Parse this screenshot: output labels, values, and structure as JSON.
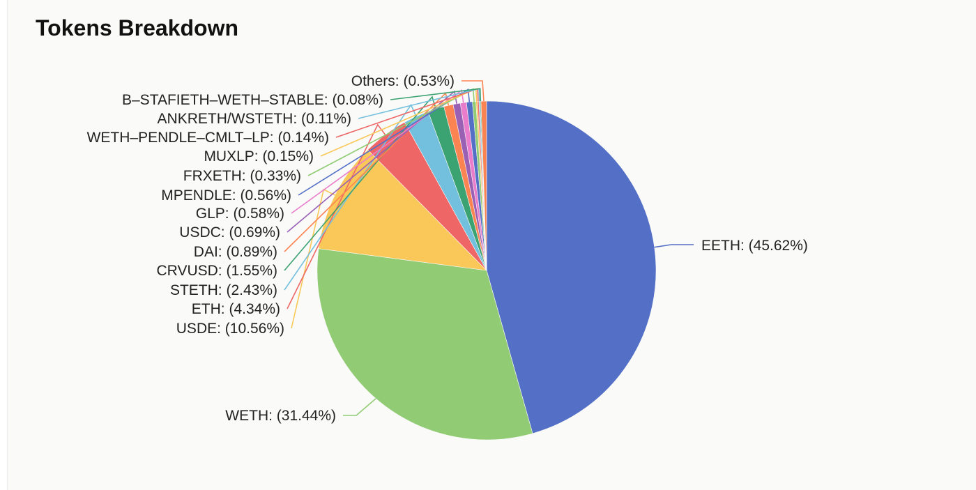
{
  "title": "Tokens Breakdown",
  "chart_data": {
    "type": "pie",
    "title": "Tokens Breakdown",
    "start_angle_deg": 90,
    "direction": "clockwise",
    "slices": [
      {
        "name": "EETH",
        "value": 45.62,
        "label": "EETH: (45.62%)",
        "color": "#5470c6"
      },
      {
        "name": "WETH",
        "value": 31.44,
        "label": "WETH: (31.44%)",
        "color": "#91cc75"
      },
      {
        "name": "USDE",
        "value": 10.56,
        "label": "USDE: (10.56%)",
        "color": "#fac858"
      },
      {
        "name": "ETH",
        "value": 4.34,
        "label": "ETH: (4.34%)",
        "color": "#ee6666"
      },
      {
        "name": "STETH",
        "value": 2.43,
        "label": "STETH: (2.43%)",
        "color": "#73c0de"
      },
      {
        "name": "CRVUSD",
        "value": 1.55,
        "label": "CRVUSD: (1.55%)",
        "color": "#3ba272"
      },
      {
        "name": "DAI",
        "value": 0.89,
        "label": "DAI: (0.89%)",
        "color": "#fc8452"
      },
      {
        "name": "USDC",
        "value": 0.69,
        "label": "USDC: (0.69%)",
        "color": "#9a60b4"
      },
      {
        "name": "GLP",
        "value": 0.58,
        "label": "GLP: (0.58%)",
        "color": "#ea7ccc"
      },
      {
        "name": "MPENDLE",
        "value": 0.56,
        "label": "MPENDLE: (0.56%)",
        "color": "#5470c6"
      },
      {
        "name": "FRXETH",
        "value": 0.33,
        "label": "FRXETH: (0.33%)",
        "color": "#91cc75"
      },
      {
        "name": "MUXLP",
        "value": 0.15,
        "label": "MUXLP: (0.15%)",
        "color": "#fac858"
      },
      {
        "name": "WETH-PENDLE-CMLT-LP",
        "value": 0.14,
        "label": "WETH–PENDLE–CMLT–LP: (0.14%)",
        "color": "#ee6666"
      },
      {
        "name": "ANKRETH/WSTETH",
        "value": 0.11,
        "label": "ANKRETH/WSTETH: (0.11%)",
        "color": "#73c0de"
      },
      {
        "name": "B-STAFIETH-WETH-STABLE",
        "value": 0.08,
        "label": "B–STAFIETH–WETH–STABLE: (0.08%)",
        "color": "#3ba272"
      },
      {
        "name": "Others",
        "value": 0.53,
        "label": "Others: (0.53%)",
        "color": "#fc8452"
      }
    ]
  }
}
